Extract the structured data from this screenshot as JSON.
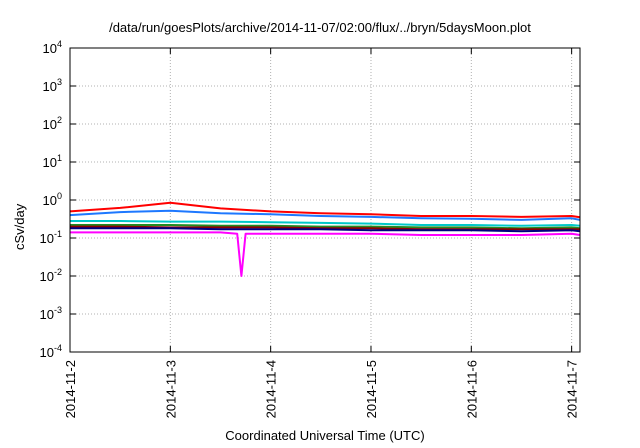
{
  "chart_data": {
    "type": "line",
    "title": "/data/run/goesPlots/archive/2014-11-07/02:00/flux/../bryn/5daysMoon.plot",
    "xlabel": "Coordinated Universal Time (UTC)",
    "ylabel": "cSv/day",
    "y_scale": "log",
    "ylim": [
      0.0001,
      10000
    ],
    "y_ticks": [
      {
        "value": 0.0001,
        "base": "10",
        "exp": "-4"
      },
      {
        "value": 0.001,
        "base": "10",
        "exp": "-3"
      },
      {
        "value": 0.01,
        "base": "10",
        "exp": "-2"
      },
      {
        "value": 0.1,
        "base": "10",
        "exp": "-1"
      },
      {
        "value": 1,
        "base": "10",
        "exp": "0"
      },
      {
        "value": 10,
        "base": "10",
        "exp": "1"
      },
      {
        "value": 100,
        "base": "10",
        "exp": "2"
      },
      {
        "value": 1000,
        "base": "10",
        "exp": "3"
      },
      {
        "value": 10000,
        "base": "10",
        "exp": "4"
      }
    ],
    "xlim": [
      "2014-11-02",
      "2014-11-07T02:00"
    ],
    "x_ticks": [
      "2014-11-2",
      "2014-11-3",
      "2014-11-4",
      "2014-11-5",
      "2014-11-6",
      "2014-11-7"
    ],
    "grid": true,
    "series": [
      {
        "color": "#ff0000",
        "x": [
          "2014-11-02",
          "2014-11-02T12:00",
          "2014-11-03",
          "2014-11-03T12:00",
          "2014-11-04",
          "2014-11-04T12:00",
          "2014-11-05",
          "2014-11-05T12:00",
          "2014-11-06",
          "2014-11-06T12:00",
          "2014-11-07",
          "2014-11-07T02:00"
        ],
        "y": [
          0.5,
          0.62,
          0.85,
          0.6,
          0.5,
          0.45,
          0.42,
          0.38,
          0.38,
          0.36,
          0.38,
          0.35
        ]
      },
      {
        "color": "#1e78ff",
        "x": [
          "2014-11-02",
          "2014-11-02T12:00",
          "2014-11-03",
          "2014-11-03T12:00",
          "2014-11-04",
          "2014-11-04T12:00",
          "2014-11-05",
          "2014-11-05T12:00",
          "2014-11-06",
          "2014-11-06T12:00",
          "2014-11-07",
          "2014-11-07T02:00"
        ],
        "y": [
          0.4,
          0.48,
          0.52,
          0.45,
          0.42,
          0.38,
          0.36,
          0.33,
          0.32,
          0.3,
          0.33,
          0.3
        ]
      },
      {
        "color": "#00c8c8",
        "x": [
          "2014-11-02",
          "2014-11-02T12:00",
          "2014-11-03",
          "2014-11-03T12:00",
          "2014-11-04",
          "2014-11-04T12:00",
          "2014-11-05",
          "2014-11-05T12:00",
          "2014-11-06",
          "2014-11-06T12:00",
          "2014-11-07",
          "2014-11-07T02:00"
        ],
        "y": [
          0.28,
          0.28,
          0.27,
          0.27,
          0.26,
          0.25,
          0.24,
          0.22,
          0.22,
          0.21,
          0.22,
          0.21
        ]
      },
      {
        "color": "#228b22",
        "x": [
          "2014-11-02",
          "2014-11-02T12:00",
          "2014-11-03",
          "2014-11-03T12:00",
          "2014-11-04",
          "2014-11-04T12:00",
          "2014-11-05",
          "2014-11-05T12:00",
          "2014-11-06",
          "2014-11-06T12:00",
          "2014-11-07",
          "2014-11-07T02:00"
        ],
        "y": [
          0.22,
          0.22,
          0.22,
          0.21,
          0.21,
          0.2,
          0.2,
          0.19,
          0.19,
          0.18,
          0.19,
          0.18
        ]
      },
      {
        "color": "#8b0000",
        "x": [
          "2014-11-02",
          "2014-11-02T12:00",
          "2014-11-03",
          "2014-11-03T12:00",
          "2014-11-04",
          "2014-11-04T12:00",
          "2014-11-05",
          "2014-11-05T12:00",
          "2014-11-06",
          "2014-11-06T12:00",
          "2014-11-07",
          "2014-11-07T02:00"
        ],
        "y": [
          0.2,
          0.2,
          0.19,
          0.19,
          0.19,
          0.18,
          0.18,
          0.17,
          0.17,
          0.17,
          0.17,
          0.17
        ]
      },
      {
        "color": "#000080",
        "x": [
          "2014-11-02",
          "2014-11-02T12:00",
          "2014-11-03",
          "2014-11-03T12:00",
          "2014-11-04",
          "2014-11-04T12:00",
          "2014-11-05",
          "2014-11-05T12:00",
          "2014-11-06",
          "2014-11-06T12:00",
          "2014-11-07",
          "2014-11-07T02:00"
        ],
        "y": [
          0.18,
          0.18,
          0.18,
          0.17,
          0.17,
          0.17,
          0.16,
          0.16,
          0.16,
          0.15,
          0.16,
          0.15
        ]
      },
      {
        "color": "#ff00ff",
        "x": [
          "2014-11-02",
          "2014-11-02T12:00",
          "2014-11-03",
          "2014-11-03T12:00",
          "2014-11-03T16:00",
          "2014-11-03T17:00",
          "2014-11-03T18:00",
          "2014-11-04",
          "2014-11-04T12:00",
          "2014-11-05",
          "2014-11-05T12:00",
          "2014-11-06",
          "2014-11-06T12:00",
          "2014-11-07",
          "2014-11-07T02:00"
        ],
        "y": [
          0.14,
          0.14,
          0.14,
          0.14,
          0.13,
          0.01,
          0.13,
          0.13,
          0.13,
          0.13,
          0.12,
          0.12,
          0.12,
          0.13,
          0.12
        ]
      }
    ]
  }
}
